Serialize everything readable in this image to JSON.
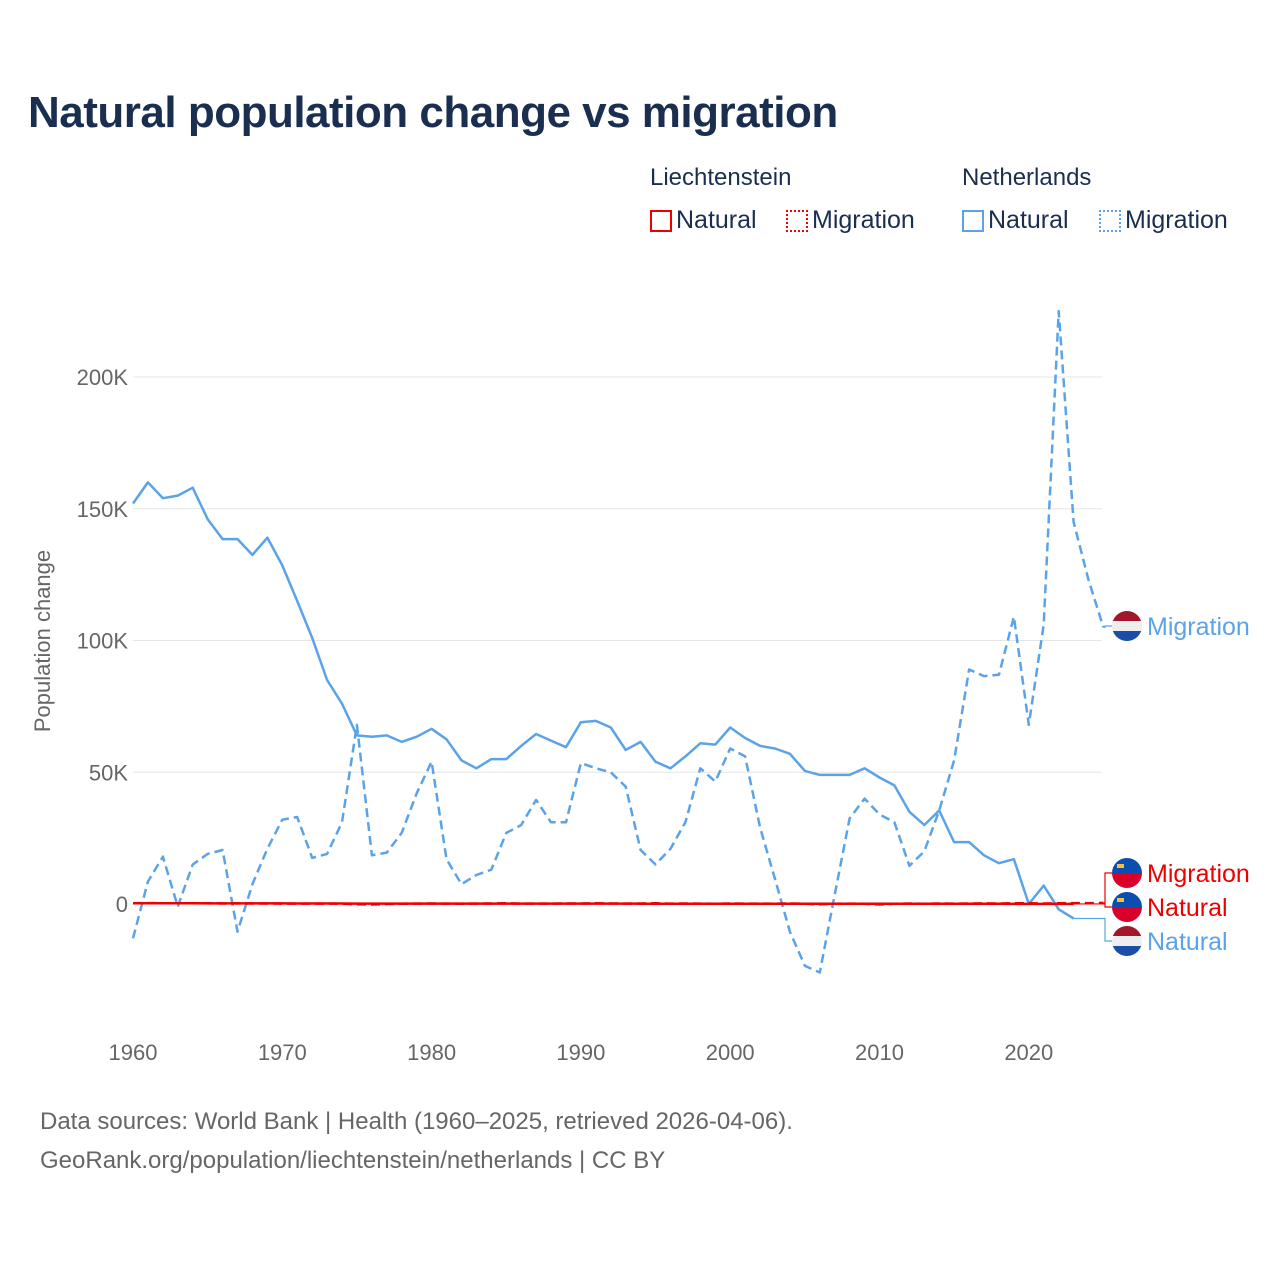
{
  "title": "Natural population change vs migration",
  "legend": {
    "groups": [
      {
        "name": "Liechtenstein",
        "color": "#ee0000",
        "items": [
          "Natural",
          "Migration"
        ]
      },
      {
        "name": "Netherlands",
        "color": "#5ba3e8",
        "items": [
          "Natural",
          "Migration"
        ]
      }
    ]
  },
  "footer": {
    "line1": "Data sources: World Bank | Health (1960–2025, retrieved 2026-04-06).",
    "line2": "GeoRank.org/population/liechtenstein/netherlands | CC BY"
  },
  "chart_data": {
    "type": "line",
    "title": "Natural population change vs migration",
    "xlabel": "",
    "ylabel": "Population change",
    "xlim": [
      1960,
      2025
    ],
    "ylim": [
      -40000,
      225000
    ],
    "xticks": [
      1960,
      1970,
      1980,
      1990,
      2000,
      2010,
      2020
    ],
    "xtick_labels": [
      "1960",
      "1970",
      "1980",
      "1990",
      "2000",
      "2010",
      "2020"
    ],
    "yticks": [
      0,
      50000,
      100000,
      150000,
      200000
    ],
    "ytick_labels": [
      "0",
      "50K",
      "100K",
      "150K",
      "200K"
    ],
    "grid": true,
    "series": [
      {
        "name": "Netherlands Natural",
        "country": "Netherlands",
        "kind": "Natural",
        "color": "#5ba3e8",
        "dash": false,
        "end_label": "Natural",
        "start": 1960,
        "values": [
          152000,
          160000,
          154000,
          155000,
          158000,
          146000,
          138500,
          138500,
          132500,
          139000,
          128500,
          115000,
          101000,
          85000,
          76000,
          64000,
          63500,
          64000,
          61500,
          63500,
          66500,
          62500,
          54500,
          51500,
          55000,
          55000,
          60000,
          64500,
          62000,
          59500,
          69000,
          69500,
          67000,
          58500,
          61500,
          54000,
          51500,
          56000,
          61000,
          60500,
          67000,
          63000,
          60000,
          59000,
          57000,
          50500,
          49000,
          49000,
          49000,
          51500,
          48000,
          45000,
          35000,
          30000,
          35500,
          23500,
          23500,
          18500,
          15500,
          17000,
          0,
          7000,
          -2000,
          -5500
        ]
      },
      {
        "name": "Netherlands Migration",
        "country": "Netherlands",
        "kind": "Migration",
        "color": "#5ba3e8",
        "dash": true,
        "end_label": "Migration",
        "start": 1960,
        "values": [
          -13000,
          8500,
          18000,
          -1000,
          15000,
          19000,
          20500,
          -10500,
          7500,
          21000,
          32000,
          33000,
          17500,
          19000,
          31000,
          68000,
          18500,
          19500,
          27000,
          42000,
          54000,
          17000,
          7500,
          11000,
          13000,
          27000,
          30000,
          39500,
          31000,
          31000,
          53500,
          51500,
          50000,
          44500,
          20500,
          15000,
          21000,
          31000,
          51500,
          46500,
          59000,
          56000,
          29000,
          9500,
          -10500,
          -23500,
          -26000,
          3500,
          32500,
          40000,
          34000,
          31000,
          14500,
          20000,
          35500,
          54500,
          89000,
          86500,
          87000,
          109000,
          68000,
          106000,
          225000,
          145000,
          123000,
          105000
        ]
      },
      {
        "name": "Liechtenstein Natural",
        "country": "Liechtenstein",
        "kind": "Natural",
        "color": "#ee0000",
        "dash": false,
        "end_label": "Natural",
        "start": 1960,
        "values": [
          250,
          270,
          260,
          260,
          250,
          240,
          230,
          230,
          220,
          220,
          210,
          200,
          200,
          190,
          180,
          170,
          160,
          150,
          150,
          150,
          160,
          160,
          150,
          150,
          150,
          140,
          140,
          150,
          140,
          140,
          150,
          150,
          150,
          140,
          130,
          130,
          130,
          120,
          120,
          120,
          130,
          120,
          110,
          110,
          100,
          100,
          100,
          90,
          90,
          100,
          90,
          80,
          80,
          70,
          70,
          60,
          60,
          60,
          60,
          50,
          40,
          40,
          30,
          20
        ]
      },
      {
        "name": "Liechtenstein Migration",
        "country": "Liechtenstein",
        "kind": "Migration",
        "color": "#ee0000",
        "dash": true,
        "end_label": "Migration",
        "start": 1960,
        "values": [
          300,
          350,
          300,
          250,
          300,
          250,
          200,
          250,
          200,
          200,
          150,
          150,
          100,
          150,
          100,
          -100,
          -200,
          0,
          100,
          150,
          200,
          150,
          100,
          150,
          200,
          250,
          150,
          100,
          150,
          200,
          200,
          250,
          200,
          150,
          200,
          250,
          150,
          200,
          150,
          100,
          200,
          150,
          100,
          150,
          200,
          100,
          -100,
          100,
          150,
          100,
          -200,
          100,
          200,
          100,
          200,
          150,
          200,
          250,
          200,
          300,
          250,
          200,
          300,
          350,
          300,
          400
        ]
      }
    ]
  }
}
